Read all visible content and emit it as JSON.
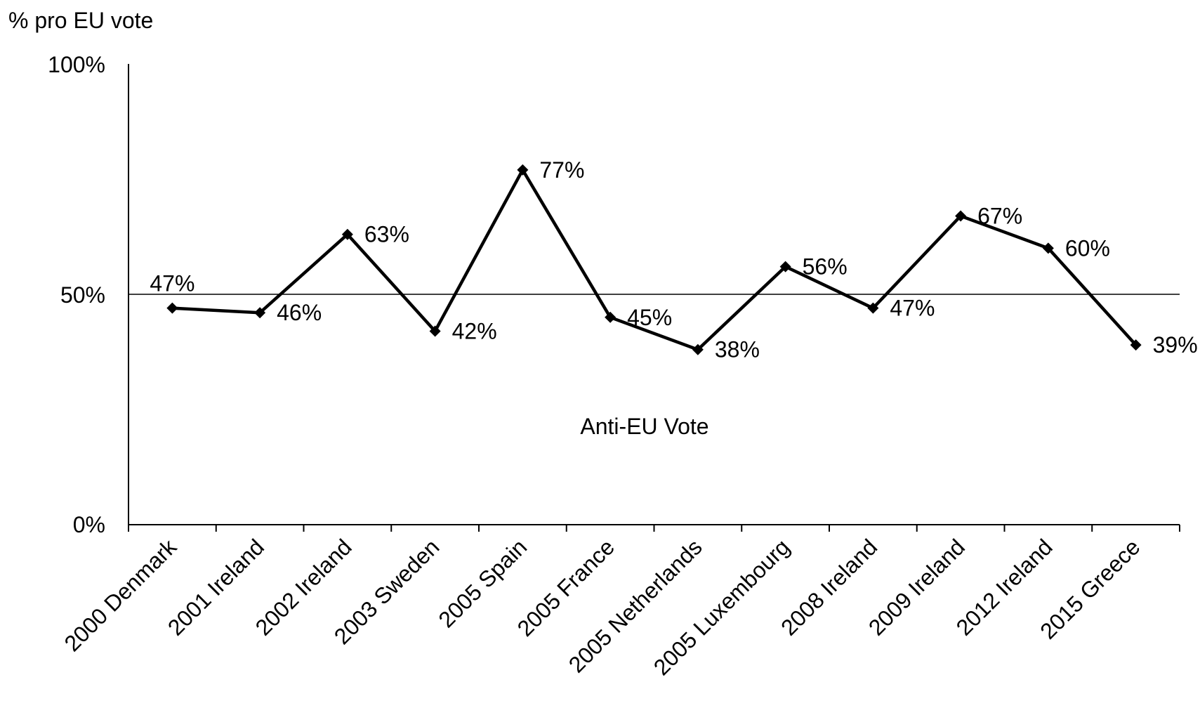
{
  "chart_data": {
    "type": "line",
    "ylabel": "% pro EU vote",
    "xlabel": "",
    "ylim": [
      0,
      100
    ],
    "yticks": [
      "0%",
      "50%",
      "100%"
    ],
    "reference_line": {
      "value": 50
    },
    "annotation": "Anti-EU Vote",
    "grid": false,
    "categories": [
      "2000 Denmark",
      "2001 Ireland",
      "2002 Ireland",
      "2003 Sweden",
      "2005 Spain",
      "2005 France",
      "2005 Netherlands",
      "2005 Luxembourg",
      "2008 Ireland",
      "2009 Ireland",
      "2012 Ireland",
      "2015 Greece"
    ],
    "values": [
      47,
      46,
      63,
      42,
      77,
      45,
      38,
      56,
      47,
      67,
      60,
      39
    ],
    "data_labels": [
      "47%",
      "46%",
      "63%",
      "42%",
      "77%",
      "45%",
      "38%",
      "56%",
      "47%",
      "67%",
      "60%",
      "39%"
    ],
    "line_color": "#000000"
  }
}
